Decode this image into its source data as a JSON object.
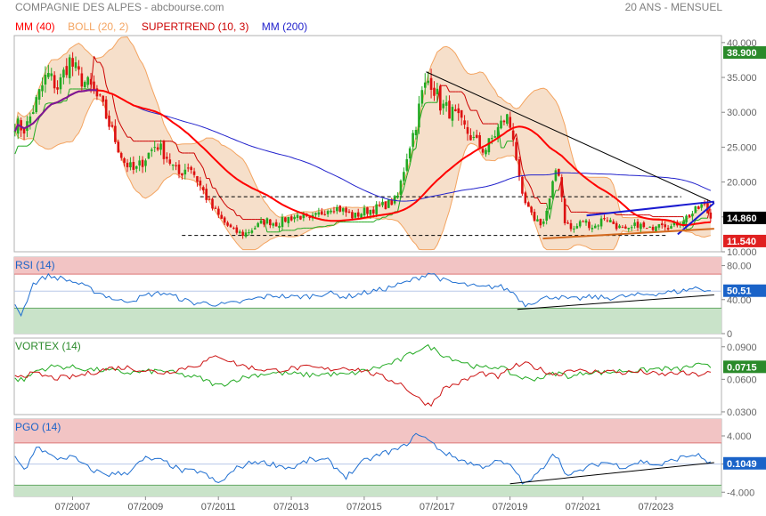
{
  "header": {
    "title": "COMPAGNIE DES ALPES - abcbourse.com",
    "period": "20 ANS - MENSUEL"
  },
  "colors": {
    "price_up": "#22aa22",
    "price_down": "#dd1111",
    "mm40": "#ff0000",
    "boll": "#f4a460",
    "boll_fill": "#f5dcc4",
    "supertrend": "#cc0000",
    "mm200": "#2222cc",
    "rsi_line": "#1f6fd1",
    "overbought": "#f2c4c4",
    "oversold": "#c9e3c9",
    "badge_green": "#2a8a2a",
    "badge_black": "#000000",
    "badge_red": "#e02020",
    "badge_blue": "#1a63c8"
  },
  "chart_data": [
    {
      "type": "candlestick",
      "legend": [
        {
          "text": "MM (40)",
          "color": "#ff0000"
        },
        {
          "text": "BOLL (20, 2)",
          "color": "#f4a460"
        },
        {
          "text": "SUPERTREND (10, 3)",
          "color": "#cc0000"
        },
        {
          "text": "MM (200)",
          "color": "#2222cc"
        }
      ],
      "yticks": [
        "40.000",
        "35.000",
        "30.000",
        "25.000",
        "20.000",
        "15.000",
        "10.000"
      ],
      "ylim": [
        10,
        41
      ],
      "badges": [
        {
          "text": "38.900",
          "value": 38.9,
          "color": "#2a8a2a"
        },
        {
          "text": "14.860",
          "value": 14.86,
          "color": "#000000"
        },
        {
          "text": "11.540",
          "value": 11.54,
          "color": "#e02020"
        }
      ],
      "close_anchors": [
        [
          2005.9,
          28.5
        ],
        [
          2006.2,
          27.5
        ],
        [
          2006.5,
          31.5
        ],
        [
          2006.8,
          35.5
        ],
        [
          2007.1,
          33.5
        ],
        [
          2007.4,
          37.5
        ],
        [
          2007.7,
          35.0
        ],
        [
          2008.0,
          33.5
        ],
        [
          2008.3,
          31.0
        ],
        [
          2008.6,
          27.0
        ],
        [
          2008.9,
          23.0
        ],
        [
          2009.2,
          21.5
        ],
        [
          2009.5,
          23.5
        ],
        [
          2009.8,
          25.5
        ],
        [
          2010.1,
          23.5
        ],
        [
          2010.4,
          21.0
        ],
        [
          2010.7,
          22.5
        ],
        [
          2011.0,
          19.5
        ],
        [
          2011.3,
          16.5
        ],
        [
          2011.6,
          14.5
        ],
        [
          2011.9,
          13.0
        ],
        [
          2012.2,
          12.5
        ],
        [
          2012.5,
          13.5
        ],
        [
          2012.8,
          14.5
        ],
        [
          2013.1,
          14.0
        ],
        [
          2013.4,
          14.8
        ],
        [
          2013.7,
          15.2
        ],
        [
          2014.0,
          14.5
        ],
        [
          2014.3,
          15.5
        ],
        [
          2014.6,
          16.5
        ],
        [
          2014.9,
          16.0
        ],
        [
          2015.2,
          15.0
        ],
        [
          2015.5,
          15.8
        ],
        [
          2015.8,
          16.2
        ],
        [
          2016.1,
          16.8
        ],
        [
          2016.4,
          17.5
        ],
        [
          2016.7,
          24.5
        ],
        [
          2016.9,
          28.0
        ],
        [
          2017.1,
          33.0
        ],
        [
          2017.3,
          35.0
        ],
        [
          2017.6,
          31.0
        ],
        [
          2017.9,
          30.0
        ],
        [
          2018.2,
          28.0
        ],
        [
          2018.5,
          26.0
        ],
        [
          2018.8,
          24.5
        ],
        [
          2019.1,
          27.0
        ],
        [
          2019.4,
          29.5
        ],
        [
          2019.6,
          26.5
        ],
        [
          2019.8,
          18.0
        ],
        [
          2020.1,
          15.0
        ],
        [
          2020.4,
          14.0
        ],
        [
          2020.6,
          17.5
        ],
        [
          2020.8,
          23.0
        ],
        [
          2021.0,
          14.5
        ],
        [
          2021.2,
          13.0
        ],
        [
          2021.5,
          14.5
        ],
        [
          2021.8,
          13.5
        ],
        [
          2022.1,
          15.0
        ],
        [
          2022.4,
          13.8
        ],
        [
          2022.7,
          12.8
        ],
        [
          2023.0,
          14.0
        ],
        [
          2023.3,
          13.0
        ],
        [
          2023.6,
          14.5
        ],
        [
          2023.9,
          13.5
        ],
        [
          2024.2,
          14.5
        ],
        [
          2024.5,
          15.5
        ],
        [
          2024.8,
          16.8
        ],
        [
          2025.0,
          14.86
        ]
      ],
      "triangle_lines": [
        {
          "from": [
            2017.2,
            35.8
          ],
          "to": [
            2025.1,
            17.0
          ],
          "color": "#000000"
        },
        {
          "from": [
            2021.6,
            15.2
          ],
          "to": [
            2025.1,
            17.2
          ],
          "color": "#1a1ad0"
        },
        {
          "from": [
            2024.1,
            12.5
          ],
          "to": [
            2025.1,
            17.0
          ],
          "color": "#1a1ad0"
        },
        {
          "from": [
            2020.4,
            11.9
          ],
          "to": [
            2025.1,
            13.3
          ],
          "color": "#d2691e"
        }
      ],
      "hlines": [
        {
          "value": 17.9,
          "from": 2011.0,
          "to": 2024.2
        },
        {
          "value": 12.35,
          "from": 2010.5,
          "to": 2023.8
        }
      ]
    },
    {
      "type": "line",
      "legend": [
        {
          "text": "RSI (14)",
          "color": "#1a63c8"
        }
      ],
      "yticks": [
        "80.00",
        "40.00",
        "0"
      ],
      "ylim": [
        0,
        90
      ],
      "zones": [
        70,
        30
      ],
      "badge": {
        "text": "50.51",
        "value": 50.51,
        "color": "#1a63c8"
      },
      "anchors": [
        [
          2005.9,
          36
        ],
        [
          2006.1,
          22
        ],
        [
          2006.4,
          58
        ],
        [
          2006.8,
          68
        ],
        [
          2007.2,
          65
        ],
        [
          2007.6,
          60
        ],
        [
          2008.0,
          52
        ],
        [
          2008.4,
          45
        ],
        [
          2008.8,
          38
        ],
        [
          2009.2,
          40
        ],
        [
          2009.6,
          46
        ],
        [
          2010.0,
          48
        ],
        [
          2010.4,
          42
        ],
        [
          2010.8,
          36
        ],
        [
          2011.2,
          36
        ],
        [
          2011.6,
          34
        ],
        [
          2012.0,
          36
        ],
        [
          2012.5,
          41
        ],
        [
          2013.0,
          45
        ],
        [
          2013.5,
          43
        ],
        [
          2014.0,
          44
        ],
        [
          2014.5,
          48
        ],
        [
          2015.0,
          43
        ],
        [
          2015.5,
          48
        ],
        [
          2016.0,
          52
        ],
        [
          2016.5,
          58
        ],
        [
          2017.0,
          66
        ],
        [
          2017.3,
          72
        ],
        [
          2017.7,
          62
        ],
        [
          2018.2,
          58
        ],
        [
          2018.7,
          54
        ],
        [
          2019.2,
          56
        ],
        [
          2019.6,
          48
        ],
        [
          2019.9,
          34
        ],
        [
          2020.3,
          40
        ],
        [
          2020.7,
          44
        ],
        [
          2021.2,
          40
        ],
        [
          2021.7,
          43
        ],
        [
          2022.2,
          42
        ],
        [
          2022.7,
          44
        ],
        [
          2023.2,
          46
        ],
        [
          2023.7,
          48
        ],
        [
          2024.2,
          50
        ],
        [
          2024.6,
          54
        ],
        [
          2025.0,
          50.51
        ]
      ],
      "trendline": {
        "from": [
          2019.7,
          28.5
        ],
        "to": [
          2025.1,
          45.5
        ]
      }
    },
    {
      "type": "line",
      "legend": [
        {
          "text": "VORTEX (14)",
          "color": "#2a8a2a"
        }
      ],
      "yticks": [
        "0.0900",
        "0.0600",
        "0.0300"
      ],
      "ylim": [
        0.0275,
        0.098
      ],
      "badge": {
        "text": "0.0715",
        "value": 0.0715,
        "color": "#2a8a2a"
      },
      "series": [
        {
          "name": "vi_plus",
          "color": "#22aa22",
          "anchors": [
            [
              2005.9,
              0.06
            ],
            [
              2006.2,
              0.06
            ],
            [
              2006.5,
              0.068
            ],
            [
              2007.0,
              0.072
            ],
            [
              2007.5,
              0.071
            ],
            [
              2008.0,
              0.069
            ],
            [
              2008.5,
              0.068
            ],
            [
              2009.0,
              0.066
            ],
            [
              2009.5,
              0.067
            ],
            [
              2010.0,
              0.068
            ],
            [
              2010.5,
              0.064
            ],
            [
              2011.0,
              0.061
            ],
            [
              2011.5,
              0.054
            ],
            [
              2012.0,
              0.06
            ],
            [
              2012.5,
              0.064
            ],
            [
              2013.0,
              0.066
            ],
            [
              2013.5,
              0.065
            ],
            [
              2014.0,
              0.064
            ],
            [
              2014.5,
              0.065
            ],
            [
              2015.0,
              0.064
            ],
            [
              2015.5,
              0.068
            ],
            [
              2016.0,
              0.072
            ],
            [
              2016.5,
              0.078
            ],
            [
              2017.0,
              0.088
            ],
            [
              2017.3,
              0.09
            ],
            [
              2017.7,
              0.082
            ],
            [
              2018.2,
              0.076
            ],
            [
              2018.7,
              0.07
            ],
            [
              2019.2,
              0.072
            ],
            [
              2019.6,
              0.064
            ],
            [
              2020.0,
              0.06
            ],
            [
              2020.4,
              0.062
            ],
            [
              2020.8,
              0.066
            ],
            [
              2021.2,
              0.062
            ],
            [
              2021.6,
              0.067
            ],
            [
              2022.1,
              0.066
            ],
            [
              2022.6,
              0.068
            ],
            [
              2023.1,
              0.068
            ],
            [
              2023.6,
              0.07
            ],
            [
              2024.1,
              0.069
            ],
            [
              2024.6,
              0.073
            ],
            [
              2025.0,
              0.0715
            ]
          ]
        },
        {
          "name": "vi_minus",
          "color": "#cc1111",
          "anchors": [
            [
              2005.9,
              0.064
            ],
            [
              2006.2,
              0.064
            ],
            [
              2006.5,
              0.065
            ],
            [
              2007.0,
              0.061
            ],
            [
              2007.5,
              0.062
            ],
            [
              2008.0,
              0.066
            ],
            [
              2008.5,
              0.07
            ],
            [
              2009.0,
              0.071
            ],
            [
              2009.5,
              0.068
            ],
            [
              2010.0,
              0.066
            ],
            [
              2010.5,
              0.07
            ],
            [
              2011.0,
              0.074
            ],
            [
              2011.5,
              0.082
            ],
            [
              2012.0,
              0.074
            ],
            [
              2012.5,
              0.07
            ],
            [
              2013.0,
              0.068
            ],
            [
              2013.5,
              0.07
            ],
            [
              2014.0,
              0.071
            ],
            [
              2014.5,
              0.069
            ],
            [
              2015.0,
              0.071
            ],
            [
              2015.5,
              0.068
            ],
            [
              2016.0,
              0.062
            ],
            [
              2016.5,
              0.056
            ],
            [
              2017.0,
              0.042
            ],
            [
              2017.3,
              0.036
            ],
            [
              2017.7,
              0.052
            ],
            [
              2018.2,
              0.058
            ],
            [
              2018.7,
              0.066
            ],
            [
              2019.2,
              0.062
            ],
            [
              2019.6,
              0.072
            ],
            [
              2020.0,
              0.074
            ],
            [
              2020.4,
              0.068
            ],
            [
              2020.8,
              0.064
            ],
            [
              2021.2,
              0.07
            ],
            [
              2021.6,
              0.066
            ],
            [
              2022.1,
              0.068
            ],
            [
              2022.6,
              0.066
            ],
            [
              2023.1,
              0.067
            ],
            [
              2023.6,
              0.064
            ],
            [
              2024.1,
              0.066
            ],
            [
              2024.6,
              0.064
            ],
            [
              2025.0,
              0.066
            ]
          ]
        }
      ]
    },
    {
      "type": "line",
      "legend": [
        {
          "text": "PGO (14)",
          "color": "#1a63c8"
        }
      ],
      "yticks": [
        "4.000",
        "0",
        "-4.000"
      ],
      "ylim": [
        -4.6,
        6.4
      ],
      "zones": [
        3.0,
        -3.0
      ],
      "badge": {
        "text": "0.1049",
        "value": 0.1049,
        "color": "#1a63c8"
      },
      "anchors": [
        [
          2005.9,
          1.0
        ],
        [
          2006.2,
          -1.0
        ],
        [
          2006.5,
          2.6
        ],
        [
          2007.0,
          0.8
        ],
        [
          2007.5,
          1.0
        ],
        [
          2008.0,
          -0.8
        ],
        [
          2008.5,
          -1.5
        ],
        [
          2009.0,
          -1.2
        ],
        [
          2009.5,
          0.8
        ],
        [
          2010.0,
          0.4
        ],
        [
          2010.5,
          -1.0
        ],
        [
          2011.0,
          -1.0
        ],
        [
          2011.5,
          -2.8
        ],
        [
          2012.0,
          -0.6
        ],
        [
          2012.5,
          0.4
        ],
        [
          2013.0,
          0.0
        ],
        [
          2013.5,
          -0.6
        ],
        [
          2014.0,
          0.6
        ],
        [
          2014.5,
          0.5
        ],
        [
          2015.0,
          -1.8
        ],
        [
          2015.5,
          0.4
        ],
        [
          2016.0,
          1.5
        ],
        [
          2016.5,
          2.2
        ],
        [
          2017.0,
          4.4
        ],
        [
          2017.3,
          3.2
        ],
        [
          2017.7,
          1.6
        ],
        [
          2018.2,
          0.5
        ],
        [
          2018.7,
          -0.4
        ],
        [
          2019.2,
          0.4
        ],
        [
          2019.6,
          -0.6
        ],
        [
          2019.9,
          -3.0
        ],
        [
          2020.3,
          -1.2
        ],
        [
          2020.7,
          1.8
        ],
        [
          2021.1,
          -1.8
        ],
        [
          2021.6,
          -0.5
        ],
        [
          2022.1,
          0.3
        ],
        [
          2022.6,
          -0.4
        ],
        [
          2023.1,
          0.4
        ],
        [
          2023.6,
          -0.2
        ],
        [
          2024.1,
          0.8
        ],
        [
          2024.6,
          1.4
        ],
        [
          2025.0,
          0.1049
        ]
      ],
      "trendline": {
        "from": [
          2019.5,
          -2.8
        ],
        "to": [
          2025.1,
          0.2
        ]
      }
    }
  ],
  "xaxis": {
    "labels": [
      "07/2007",
      "07/2009",
      "07/2011",
      "07/2013",
      "07/2015",
      "07/2017",
      "07/2019",
      "07/2021",
      "07/2023"
    ],
    "values": [
      2007.5,
      2009.5,
      2011.5,
      2013.5,
      2015.5,
      2017.5,
      2019.5,
      2021.5,
      2023.5
    ],
    "range": [
      2005.9,
      2025.3
    ]
  }
}
